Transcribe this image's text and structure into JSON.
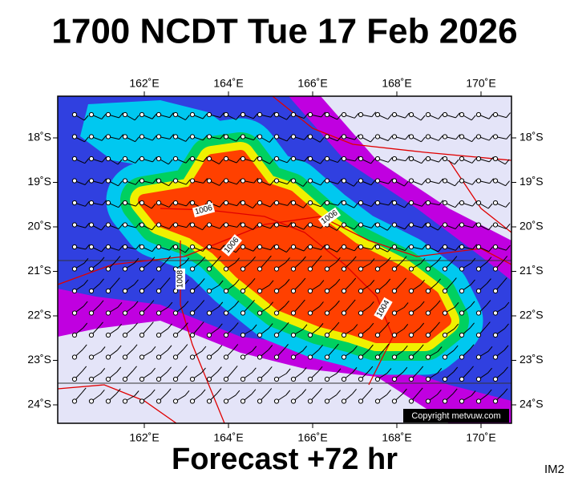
{
  "title": "1700 NCDT Tue 17 Feb 2026",
  "footer": "Forecast +72 hr",
  "image_id": "IM2",
  "map": {
    "lon_labels": [
      "162˚E",
      "164˚E",
      "166˚E",
      "168˚E",
      "170˚E"
    ],
    "lat_labels": [
      "18˚S",
      "19˚S",
      "20˚S",
      "21˚S",
      "22˚S",
      "23˚S",
      "24˚S"
    ],
    "contour_labels": [
      "1006",
      "1006",
      "1006",
      "1008",
      "1004"
    ],
    "copyright": "Copyright metvuw.com"
  }
}
